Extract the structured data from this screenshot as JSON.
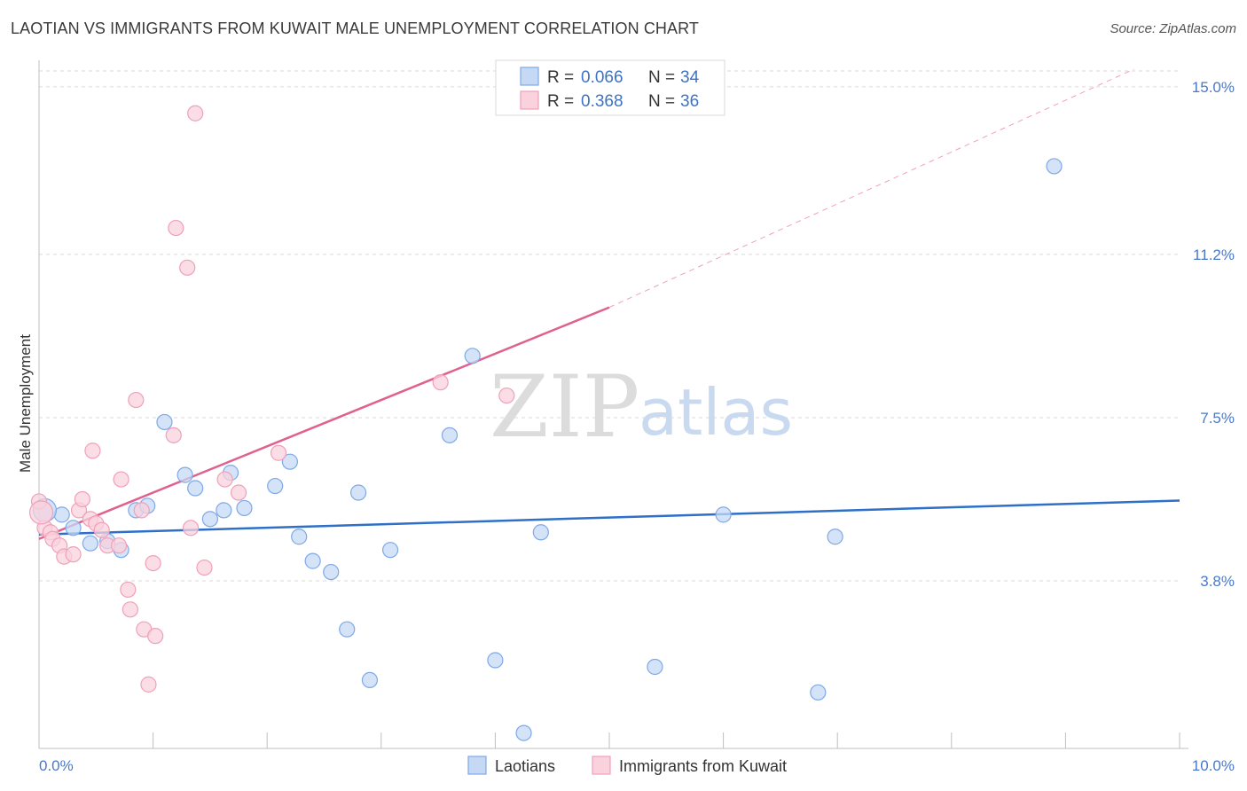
{
  "title": "LAOTIAN VS IMMIGRANTS FROM KUWAIT MALE UNEMPLOYMENT CORRELATION CHART",
  "source": "Source: ZipAtlas.com",
  "watermark": {
    "zip": "ZIP",
    "atlas": "atlas"
  },
  "legend": {
    "r_label": "R =",
    "n_label": "N =",
    "series": [
      {
        "r": "0.066",
        "n": "34"
      },
      {
        "r": "0.368",
        "n": "36"
      }
    ]
  },
  "chart_data": {
    "type": "scatter",
    "title": "LAOTIAN VS IMMIGRANTS FROM KUWAIT MALE UNEMPLOYMENT CORRELATION CHART",
    "xlabel": "",
    "ylabel": "Male Unemployment",
    "xlim": [
      0,
      10
    ],
    "ylim": [
      0,
      15.4
    ],
    "x_tick_labels": [
      "0.0%",
      "10.0%"
    ],
    "y_ticks": [
      15.0,
      11.2,
      7.5,
      3.8
    ],
    "y_tick_labels": [
      "15.0%",
      "11.2%",
      "7.5%",
      "3.8%"
    ],
    "grid": true,
    "legend_position": "top-center",
    "series": [
      {
        "name": "Laotians",
        "color": "#7ea9e6",
        "fill": "#c5d9f5",
        "line_color": "#2e6fc9",
        "trend": {
          "x": [
            0.0,
            10.0
          ],
          "y": [
            4.85,
            5.62
          ]
        },
        "points": [
          [
            0.2,
            5.3
          ],
          [
            0.3,
            5.0
          ],
          [
            0.45,
            4.65
          ],
          [
            0.6,
            4.7
          ],
          [
            0.72,
            4.5
          ],
          [
            0.85,
            5.4
          ],
          [
            0.95,
            5.5
          ],
          [
            1.1,
            7.4
          ],
          [
            1.28,
            6.2
          ],
          [
            1.37,
            5.9
          ],
          [
            1.5,
            5.2
          ],
          [
            1.62,
            5.4
          ],
          [
            1.68,
            6.25
          ],
          [
            1.8,
            5.45
          ],
          [
            2.07,
            5.95
          ],
          [
            2.2,
            6.5
          ],
          [
            2.28,
            4.8
          ],
          [
            2.4,
            4.25
          ],
          [
            2.56,
            4.0
          ],
          [
            2.7,
            2.7
          ],
          [
            2.8,
            5.8
          ],
          [
            2.9,
            1.55
          ],
          [
            3.08,
            4.5
          ],
          [
            3.6,
            7.1
          ],
          [
            3.8,
            8.9
          ],
          [
            4.0,
            2.0
          ],
          [
            4.25,
            0.35
          ],
          [
            4.4,
            4.9
          ],
          [
            5.4,
            1.85
          ],
          [
            6.0,
            5.3
          ],
          [
            6.83,
            1.27
          ],
          [
            6.98,
            4.8
          ],
          [
            8.9,
            13.2
          ],
          [
            0.05,
            5.4
          ]
        ]
      },
      {
        "name": "Immigrants from Kuwait",
        "color": "#f0a0ba",
        "fill": "#f9d2de",
        "line_color": "#e0608e",
        "trend": {
          "x": [
            0.0,
            5.0
          ],
          "y": [
            4.75,
            10.0
          ]
        },
        "trend_extended": {
          "x": [
            5.0,
            9.6
          ],
          "y": [
            10.0,
            15.4
          ]
        },
        "points": [
          [
            0.0,
            5.6
          ],
          [
            0.05,
            5.0
          ],
          [
            0.1,
            4.9
          ],
          [
            0.12,
            4.75
          ],
          [
            0.18,
            4.6
          ],
          [
            0.22,
            4.35
          ],
          [
            0.3,
            4.4
          ],
          [
            0.35,
            5.4
          ],
          [
            0.38,
            5.65
          ],
          [
            0.45,
            5.2
          ],
          [
            0.47,
            6.75
          ],
          [
            0.5,
            5.1
          ],
          [
            0.55,
            4.95
          ],
          [
            0.6,
            4.6
          ],
          [
            0.7,
            4.6
          ],
          [
            0.72,
            6.1
          ],
          [
            0.78,
            3.6
          ],
          [
            0.8,
            3.15
          ],
          [
            0.85,
            7.9
          ],
          [
            0.9,
            5.4
          ],
          [
            0.92,
            2.7
          ],
          [
            0.96,
            1.45
          ],
          [
            1.0,
            4.2
          ],
          [
            1.02,
            2.55
          ],
          [
            1.18,
            7.1
          ],
          [
            1.2,
            11.8
          ],
          [
            1.3,
            10.9
          ],
          [
            1.33,
            5.0
          ],
          [
            1.37,
            14.4
          ],
          [
            1.45,
            4.1
          ],
          [
            1.63,
            6.1
          ],
          [
            1.75,
            5.8
          ],
          [
            2.1,
            6.7
          ],
          [
            3.52,
            8.3
          ],
          [
            4.1,
            8.0
          ],
          [
            0.02,
            5.35
          ]
        ]
      }
    ]
  }
}
